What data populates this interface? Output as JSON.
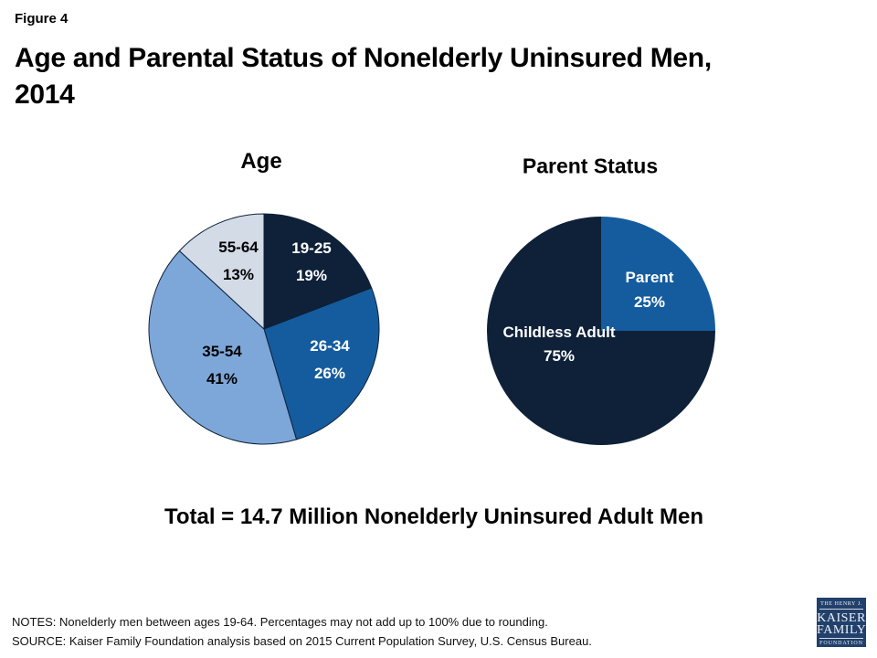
{
  "figure_label": "Figure 4",
  "title": "Age and Parental Status of Nonelderly Uninsured Men, 2014",
  "title_lines": [
    "Age and Parental Status of Nonelderly Uninsured Men,",
    "2014"
  ],
  "total_caption": "Total = 14.7 Million Nonelderly Uninsured Adult Men",
  "chart_data": [
    {
      "type": "pie",
      "title": "Age",
      "units": "percent",
      "start_angle_deg": 0,
      "direction": "clockwise",
      "slices": [
        {
          "label": "19-25",
          "value": 19,
          "color": "#0e2139",
          "label_color": "#ffffff"
        },
        {
          "label": "26-34",
          "value": 26,
          "color": "#155c9e",
          "label_color": "#ffffff"
        },
        {
          "label": "35-54",
          "value": 41,
          "color": "#7da7d9",
          "label_color": "#000000"
        },
        {
          "label": "55-64",
          "value": 13,
          "color": "#d3dbe7",
          "label_color": "#000000"
        }
      ]
    },
    {
      "type": "pie",
      "title": "Parent Status",
      "units": "percent",
      "start_angle_deg": 0,
      "direction": "clockwise",
      "slices": [
        {
          "label": "Parent",
          "value": 25,
          "color": "#155c9e",
          "label_color": "#ffffff"
        },
        {
          "label": "Childless Adult",
          "value": 75,
          "color": "#0e2139",
          "label_color": "#ffffff"
        }
      ]
    }
  ],
  "footer": {
    "notes": "NOTES: Nonelderly men between ages 19-64. Percentages may not add up to 100% due to rounding.",
    "source": "SOURCE: Kaiser Family Foundation analysis based on 2015 Current Population Survey, U.S. Census Bureau."
  },
  "logo": {
    "tagline_top": "THE HENRY J.",
    "name_line1": "KAISER",
    "name_line2": "FAMILY",
    "tagline_bottom": "FOUNDATION",
    "bg_color": "#21406b"
  },
  "colors": {
    "navy": "#0e2139",
    "medium_blue": "#155c9e",
    "light_blue": "#7da7d9",
    "pale_blue_gray": "#d3dbe7",
    "background": "#ffffff"
  }
}
